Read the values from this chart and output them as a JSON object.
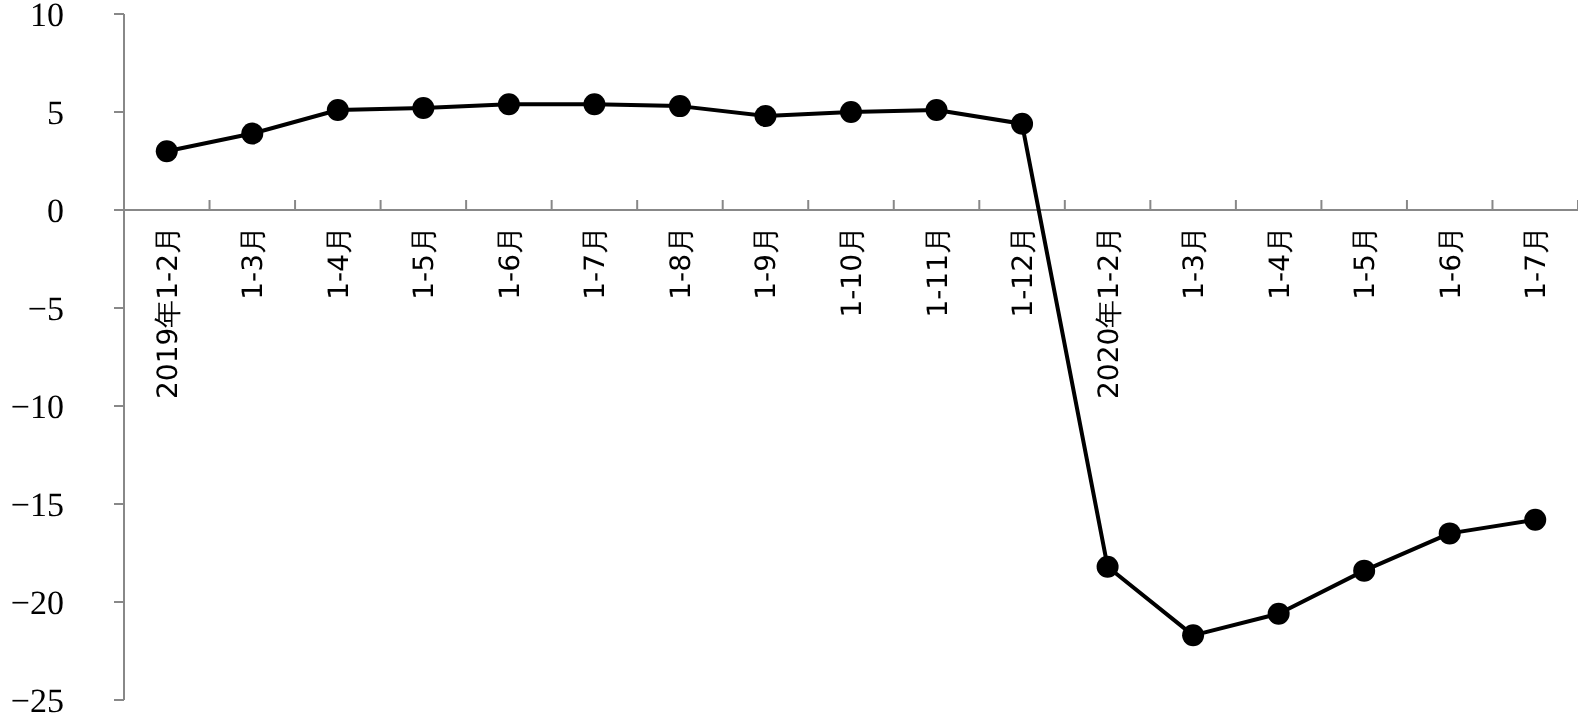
{
  "chart_data": {
    "type": "line",
    "categories": [
      "2019年1-2月",
      "1-3月",
      "1-4月",
      "1-5月",
      "1-6月",
      "1-7月",
      "1-8月",
      "1-9月",
      "1-10月",
      "1-11月",
      "1-12月",
      "2020年1-2月",
      "1-3月",
      "1-4月",
      "1-5月",
      "1-6月",
      "1-7月"
    ],
    "series": [
      {
        "color": "#000000",
        "values": [
          3.0,
          3.9,
          5.1,
          5.2,
          5.4,
          5.4,
          5.3,
          4.8,
          5.0,
          5.1,
          4.4,
          -18.2,
          -21.7,
          -20.6,
          -18.4,
          -16.5,
          -15.8
        ]
      }
    ],
    "ylim": [
      -25,
      10
    ],
    "yticks": [
      -25,
      -20,
      -15,
      -10,
      -5,
      0,
      5,
      10
    ],
    "marker": "circle",
    "line_style": "solid",
    "grid": false
  }
}
